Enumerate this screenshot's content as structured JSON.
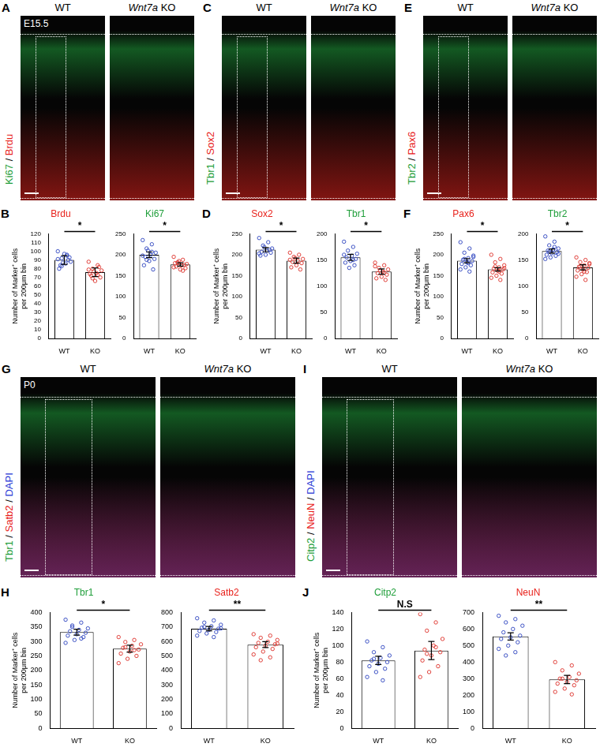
{
  "image_panels": [
    {
      "letter": "A",
      "stage": "E15.5",
      "columns": [
        "WT",
        "Wnt7a KO"
      ],
      "channel_label": [
        {
          "text": "Ki67",
          "color": "#1f9e3a"
        },
        {
          "text": " / ",
          "color": "#000000"
        },
        {
          "text": "Brdu",
          "color": "#e8221c"
        }
      ]
    },
    {
      "letter": "C",
      "columns": [
        "WT",
        "Wnt7a KO"
      ],
      "channel_label": [
        {
          "text": "Tbr1",
          "color": "#1f9e3a"
        },
        {
          "text": " / ",
          "color": "#000000"
        },
        {
          "text": "Sox2",
          "color": "#e8221c"
        }
      ]
    },
    {
      "letter": "E",
      "columns": [
        "WT",
        "Wnt7a KO"
      ],
      "channel_label": [
        {
          "text": "Tbr2",
          "color": "#1f9e3a"
        },
        {
          "text": " / ",
          "color": "#000000"
        },
        {
          "text": "Pax6",
          "color": "#e8221c"
        }
      ]
    },
    {
      "letter": "G",
      "stage": "P0",
      "columns": [
        "WT",
        "Wnt7a KO"
      ],
      "channel_label": [
        {
          "text": "Tbr1",
          "color": "#1f9e3a"
        },
        {
          "text": " / ",
          "color": "#000000"
        },
        {
          "text": "Satb2",
          "color": "#e8221c"
        },
        {
          "text": " / ",
          "color": "#000000"
        },
        {
          "text": "DAPI",
          "color": "#2b3bd6"
        }
      ]
    },
    {
      "letter": "I",
      "columns": [
        "WT",
        "Wnt7a KO"
      ],
      "channel_label": [
        {
          "text": "Citp2",
          "color": "#1f9e3a"
        },
        {
          "text": " / ",
          "color": "#000000"
        },
        {
          "text": "NeuN",
          "color": "#e8221c"
        },
        {
          "text": " / ",
          "color": "#000000"
        },
        {
          "text": "DAPI",
          "color": "#2b3bd6"
        }
      ]
    }
  ],
  "chart_data": [
    {
      "type": "bar",
      "panel": "B",
      "title": "Brdu",
      "title_color": "#e8221c",
      "y_label": [
        "Number of Marker⁺ cells",
        "per 200μm bin"
      ],
      "categories": [
        "WT",
        "KO"
      ],
      "values": [
        90,
        76
      ],
      "errors": [
        5,
        5
      ],
      "color": "#ffffff",
      "point_colors": [
        "#3d52c4",
        "#e0403a"
      ],
      "points": [
        [
          100,
          95,
          92,
          88,
          86,
          84,
          93,
          97,
          80,
          90,
          87,
          91,
          96,
          83
        ],
        [
          88,
          84,
          80,
          78,
          75,
          72,
          70,
          66,
          74,
          82,
          77,
          79,
          73,
          69
        ]
      ],
      "significance": "*",
      "ylim": [
        0,
        120
      ],
      "yticks": [
        0,
        10,
        20,
        30,
        40,
        50,
        60,
        70,
        80,
        90,
        100,
        110,
        120
      ],
      "grid": false
    },
    {
      "type": "bar",
      "panel": "B",
      "title": "Ki67",
      "title_color": "#1f9e3a",
      "categories": [
        "WT",
        "KO"
      ],
      "values": [
        200,
        177
      ],
      "errors": [
        7,
        4
      ],
      "color": "#ffffff",
      "point_colors": [
        "#3d52c4",
        "#e0403a"
      ],
      "points": [
        [
          235,
          225,
          215,
          205,
          200,
          195,
          190,
          185,
          175,
          165,
          210,
          198,
          207,
          188
        ],
        [
          195,
          188,
          182,
          178,
          175,
          172,
          168,
          165,
          180,
          176,
          185,
          170,
          162,
          181
        ]
      ],
      "significance": "*",
      "ylim": [
        0,
        250
      ],
      "yticks": [
        0,
        50,
        100,
        150,
        200,
        250
      ],
      "grid": false
    },
    {
      "type": "bar",
      "panel": "D",
      "title": "Sox2",
      "title_color": "#e8221c",
      "y_label": [
        "Number of Marker⁺ cells",
        "per 200μm bin"
      ],
      "categories": [
        "WT",
        "KO"
      ],
      "values": [
        212,
        186
      ],
      "errors": [
        5,
        6
      ],
      "color": "#ffffff",
      "point_colors": [
        "#3d52c4",
        "#e0403a"
      ],
      "points": [
        [
          240,
          230,
          222,
          215,
          210,
          207,
          205,
          200,
          198,
          212,
          218,
          203
        ],
        [
          205,
          200,
          195,
          190,
          186,
          183,
          180,
          175,
          170,
          165,
          192,
          188
        ]
      ],
      "significance": "*",
      "ylim": [
        0,
        250
      ],
      "yticks": [
        0,
        50,
        100,
        150,
        200,
        250
      ],
      "grid": false
    },
    {
      "type": "bar",
      "panel": "D",
      "title": "Tbr1",
      "title_color": "#1f9e3a",
      "categories": [
        "WT",
        "KO"
      ],
      "values": [
        155,
        128
      ],
      "errors": [
        6,
        5
      ],
      "color": "#ffffff",
      "point_colors": [
        "#3d52c4",
        "#e0403a"
      ],
      "points": [
        [
          185,
          175,
          168,
          162,
          158,
          155,
          152,
          148,
          145,
          140,
          135,
          160,
          150
        ],
        [
          145,
          140,
          135,
          132,
          128,
          125,
          122,
          118,
          115,
          112,
          130,
          138,
          126
        ]
      ],
      "significance": "*",
      "ylim": [
        0,
        200
      ],
      "yticks": [
        0,
        50,
        100,
        150,
        200
      ],
      "grid": false
    },
    {
      "type": "bar",
      "panel": "F",
      "title": "Pax6",
      "title_color": "#e8221c",
      "y_label": [
        "Number of Marker⁺ cells",
        "per 200μm bin"
      ],
      "categories": [
        "WT",
        "KO"
      ],
      "values": [
        186,
        165
      ],
      "errors": [
        5,
        4
      ],
      "color": "#ffffff",
      "point_colors": [
        "#3d52c4",
        "#e0403a"
      ],
      "points": [
        [
          230,
          215,
          205,
          198,
          192,
          188,
          185,
          182,
          178,
          175,
          170,
          165,
          160,
          190,
          195,
          180
        ],
        [
          200,
          190,
          182,
          175,
          170,
          167,
          165,
          162,
          158,
          155,
          150,
          145,
          140,
          172,
          168,
          160
        ]
      ],
      "significance": "*",
      "ylim": [
        0,
        250
      ],
      "yticks": [
        0,
        50,
        100,
        150,
        200,
        250
      ],
      "grid": false
    },
    {
      "type": "bar",
      "panel": "F",
      "title": "Tbr2",
      "title_color": "#1f9e3a",
      "categories": [
        "WT",
        "KO"
      ],
      "values": [
        167,
        136
      ],
      "errors": [
        4,
        5
      ],
      "color": "#ffffff",
      "point_colors": [
        "#3d52c4",
        "#e0403a"
      ],
      "points": [
        [
          195,
          185,
          178,
          172,
          170,
          168,
          165,
          163,
          160,
          158,
          155,
          152,
          175,
          166,
          162,
          170
        ],
        [
          155,
          150,
          146,
          142,
          140,
          137,
          135,
          132,
          130,
          127,
          123,
          118,
          112,
          138,
          144,
          128
        ]
      ],
      "significance": "*",
      "ylim": [
        0,
        200
      ],
      "yticks": [
        0,
        50,
        100,
        150,
        200
      ],
      "grid": false
    },
    {
      "type": "bar",
      "panel": "H",
      "title": "Tbr1",
      "title_color": "#1f9e3a",
      "y_label": [
        "Number of Marker⁺ cells",
        "per 200μm bin"
      ],
      "categories": [
        "WT",
        "KO"
      ],
      "values": [
        332,
        275
      ],
      "errors": [
        10,
        12
      ],
      "color": "#ffffff",
      "point_colors": [
        "#3d52c4",
        "#e0403a"
      ],
      "points": [
        [
          375,
          365,
          355,
          345,
          340,
          335,
          330,
          325,
          320,
          315,
          305,
          295,
          310,
          350
        ],
        [
          315,
          305,
          298,
          290,
          285,
          278,
          272,
          265,
          258,
          250,
          240,
          225,
          270,
          280
        ]
      ],
      "significance": "*",
      "ylim": [
        0,
        400
      ],
      "yticks": [
        0,
        50,
        100,
        150,
        200,
        250,
        300,
        350,
        400
      ],
      "grid": false
    },
    {
      "type": "bar",
      "panel": "H",
      "title": "Satb2",
      "title_color": "#e8221c",
      "categories": [
        "WT",
        "KO"
      ],
      "values": [
        688,
        578
      ],
      "errors": [
        15,
        20
      ],
      "color": "#ffffff",
      "point_colors": [
        "#3d52c4",
        "#e0403a"
      ],
      "points": [
        [
          760,
          745,
          730,
          715,
          705,
          695,
          688,
          680,
          672,
          665,
          655,
          640,
          630,
          700,
          690
        ],
        [
          650,
          640,
          625,
          610,
          598,
          590,
          580,
          570,
          560,
          548,
          530,
          510,
          490,
          470,
          585
        ]
      ],
      "significance": "**",
      "ylim": [
        0,
        800
      ],
      "yticks": [
        0,
        100,
        200,
        300,
        400,
        500,
        600,
        700,
        800
      ],
      "grid": false
    },
    {
      "type": "bar",
      "panel": "J",
      "title": "Citp2",
      "title_color": "#1f9e3a",
      "y_label": [
        "Number of Marker⁺ cells",
        "per 200μm bin"
      ],
      "categories": [
        "WT",
        "KO"
      ],
      "values": [
        82,
        94
      ],
      "errors": [
        5,
        11
      ],
      "color": "#ffffff",
      "point_colors": [
        "#3d52c4",
        "#e0403a"
      ],
      "points": [
        [
          105,
          98,
          92,
          88,
          85,
          82,
          80,
          78,
          75,
          72,
          68,
          62,
          58,
          84
        ],
        [
          138,
          128,
          118,
          108,
          100,
          95,
          92,
          88,
          82,
          75,
          68,
          62,
          98,
          90
        ]
      ],
      "significance": "N.S",
      "ylim": [
        0,
        140
      ],
      "yticks": [
        0,
        20,
        40,
        60,
        80,
        100,
        120,
        140
      ],
      "grid": false
    },
    {
      "type": "bar",
      "panel": "J",
      "title": "NeuN",
      "title_color": "#e8221c",
      "categories": [
        "WT",
        "KO"
      ],
      "values": [
        555,
        295
      ],
      "errors": [
        22,
        25
      ],
      "color": "#ffffff",
      "point_colors": [
        "#3d52c4",
        "#e0403a"
      ],
      "points": [
        [
          680,
          660,
          640,
          620,
          600,
          580,
          560,
          550,
          540,
          520,
          500,
          480,
          460,
          440
        ],
        [
          400,
          380,
          350,
          330,
          310,
          300,
          290,
          280,
          270,
          260,
          240,
          220,
          205,
          300
        ]
      ],
      "significance": "**",
      "ylim": [
        0,
        700
      ],
      "yticks": [
        0,
        100,
        200,
        300,
        400,
        500,
        600,
        700
      ],
      "grid": false
    }
  ]
}
